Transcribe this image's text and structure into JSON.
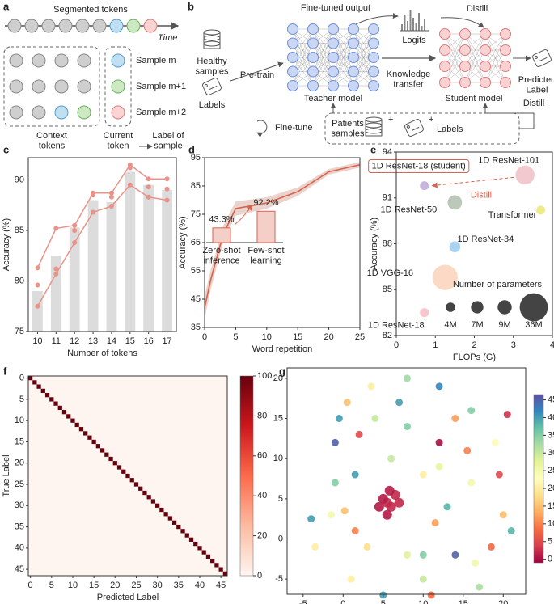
{
  "diagram_a": {
    "panel": "a",
    "title": "Segmented tokens",
    "time_label": "Time",
    "samples": [
      "Sample m",
      "Sample m+1",
      "Sample m+2"
    ],
    "context_label": "Context tokens",
    "current_label": "Current token",
    "result_label": "Label of sample"
  },
  "diagram_b": {
    "panel": "b",
    "healthy": "Healthy samples",
    "labels": "Labels",
    "pretrain": "Pre-train",
    "fine_tuned_output": "Fine-tuned output",
    "logits": "Logits",
    "distill_top": "Distill",
    "teacher": "Teacher model",
    "knowledge": "Knowledge transfer",
    "student": "Student model",
    "predicted": "Predicted Label",
    "finetune": "Fine-tune",
    "patients": "Patients samples",
    "patient_labels": "Labels",
    "distill_bottom": "Distill"
  },
  "chart_data": [
    {
      "panel": "c",
      "type": "bar",
      "categories": [
        "10",
        "11",
        "12",
        "13",
        "14",
        "15",
        "16",
        "17"
      ],
      "values": [
        79,
        82.5,
        85.3,
        88,
        87.8,
        90.8,
        89.5,
        89
      ],
      "color": "#dcdcdc",
      "series": [
        {
          "color": "#e8938a",
          "values": [
            81.3,
            85.2,
            85.5,
            88.7,
            88.7,
            91.5,
            90.1,
            90.1
          ],
          "line": true
        },
        {
          "color": "#e8938a",
          "values": [
            79.6,
            81.2,
            85.0,
            88.5,
            88.3,
            91.2,
            89.3,
            89.1
          ],
          "line": false
        },
        {
          "color": "#e8938a",
          "values": [
            77.5,
            80.7,
            83.8,
            86.8,
            87.4,
            89.5,
            88.3,
            88.0
          ],
          "line": true
        }
      ],
      "ylim": [
        75,
        92.2
      ],
      "yticks": [
        75,
        80,
        85,
        90
      ],
      "xlabel": "Number of tokens",
      "ylabel": "Accuracy (%)"
    },
    {
      "panel": "d",
      "type": "line",
      "x": [
        0,
        1,
        2,
        3,
        5,
        10,
        15,
        20,
        25
      ],
      "values": [
        42,
        52,
        60,
        68,
        77,
        79,
        83,
        90,
        92.5
      ],
      "error": [
        4,
        3.5,
        3,
        3,
        2.5,
        2,
        1.5,
        1,
        1
      ],
      "color": "#d9634d",
      "band_color": "#ead3cd",
      "xlim": [
        0,
        25
      ],
      "ylim": [
        35,
        95
      ],
      "xticks": [
        0,
        5,
        10,
        15,
        20,
        25
      ],
      "yticks": [
        35,
        45,
        55,
        65,
        75,
        85,
        95
      ],
      "xlabel": "Word repetition",
      "ylabel": "Accuracy (%)",
      "inset": {
        "categories": [
          "Zero-shot inference",
          "Few-shot learning"
        ],
        "values": [
          43.3,
          92.2
        ],
        "value_labels": [
          "43.3%",
          "92.2%"
        ],
        "color": "#f4cfc7"
      }
    },
    {
      "panel": "e",
      "type": "bubble",
      "points": [
        {
          "label": "1D ResNet-18 (student)",
          "x": 0.72,
          "y": 91.8,
          "size": 4,
          "color": "#c9b6dd"
        },
        {
          "label": "1D ResNet-101",
          "x": 3.3,
          "y": 92.5,
          "size": 17,
          "color": "#f2c9cf"
        },
        {
          "label": "1D ResNet-50",
          "x": 1.5,
          "y": 90.7,
          "size": 10,
          "color": "#bcc8b9"
        },
        {
          "label": "Transformer",
          "x": 3.7,
          "y": 90.2,
          "size": 4,
          "color": "#eeeb8a"
        },
        {
          "label": "1D ResNet-34",
          "x": 1.5,
          "y": 87.8,
          "size": 6,
          "color": "#a9d3f0"
        },
        {
          "label": "1D VGG-16",
          "x": 1.25,
          "y": 85.8,
          "size": 30,
          "color": "#fbd9c4"
        },
        {
          "label": "1D ResNet-18",
          "x": 0.72,
          "y": 83.5,
          "size": 4,
          "color": "#f6c6cc"
        }
      ],
      "xlim": [
        0,
        4
      ],
      "ylim": [
        82,
        94
      ],
      "xticks": [
        0,
        1,
        2,
        3,
        4
      ],
      "yticks": [
        82,
        85,
        88,
        91,
        94
      ],
      "xlabel": "FLOPs (G)",
      "ylabel": "Accuracy (%)",
      "annotation": "Distill",
      "annotation_color": "#d9634d",
      "legend_title": "Number of parameters",
      "legend_sizes": [
        {
          "value": 4,
          "label": "4M"
        },
        {
          "value": 7,
          "label": "7M"
        },
        {
          "value": 9,
          "label": "9M"
        },
        {
          "value": 36,
          "label": "36M"
        }
      ],
      "legend_color": "#444"
    },
    {
      "panel": "f",
      "type": "heatmap",
      "diagonal": [
        100,
        100,
        100,
        100,
        100,
        100,
        100,
        100,
        100,
        100,
        100,
        100,
        100,
        100,
        100,
        100,
        100,
        100,
        100,
        100,
        100,
        100,
        100,
        100,
        100,
        100,
        100,
        100,
        100,
        100,
        100,
        100,
        100,
        100,
        100,
        100,
        100,
        100,
        100,
        100,
        100,
        100,
        100,
        100,
        100,
        100,
        100
      ],
      "off_diagonal": 0,
      "xlim": [
        -0.5,
        46.5
      ],
      "ylim": [
        46.5,
        -0.5
      ],
      "xticks": [
        0,
        5,
        10,
        15,
        20,
        25,
        30,
        35,
        40,
        45
      ],
      "yticks": [
        0,
        5,
        10,
        15,
        20,
        25,
        30,
        35,
        40,
        45
      ],
      "clim": [
        0,
        100
      ],
      "cbarticks": [
        0,
        20,
        40,
        60,
        80,
        100
      ],
      "colors": [
        "#fff5f0",
        "#fcbba1",
        "#fb6a4a",
        "#cb181d",
        "#67000d"
      ],
      "xlabel": "Predicted Label",
      "ylabel": "True Label"
    },
    {
      "panel": "g",
      "type": "scatter",
      "x": [
        5.5,
        5,
        6,
        5.5,
        6.5,
        4.5,
        7,
        5.8,
        -4,
        -0.5,
        -1,
        0.5,
        3.5,
        7,
        12,
        16,
        20.5,
        19,
        15.5,
        12,
        8,
        4,
        2,
        -1,
        -1.5,
        1.5,
        3,
        8,
        10,
        11.5,
        13,
        16,
        19.5,
        20,
        16.5,
        18.5,
        21,
        14,
        10,
        5,
        1,
        -3.5,
        1.5,
        0.2,
        10,
        12,
        6,
        8,
        14,
        17,
        11
      ],
      "y": [
        4.5,
        5,
        4,
        3,
        5.5,
        4,
        4.5,
        6,
        2.5,
        15,
        12,
        17,
        19,
        17,
        19,
        16,
        15.5,
        12,
        11,
        12,
        14,
        15,
        13,
        7,
        3,
        8,
        -1,
        -2,
        -2,
        2,
        4,
        7,
        8,
        3,
        -3,
        -1,
        1,
        -2,
        -5,
        -7,
        -5,
        -1,
        1,
        3.5,
        8,
        9,
        10,
        20,
        15,
        -6,
        -7
      ],
      "labels": [
        2,
        1,
        2,
        1,
        2,
        1,
        2,
        1,
        40,
        40,
        45,
        15,
        20,
        40,
        42,
        35,
        3,
        22,
        10,
        0,
        35,
        30,
        5,
        35,
        25,
        40,
        18,
        28,
        35,
        12,
        38,
        25,
        5,
        15,
        25,
        8,
        38,
        45,
        30,
        40,
        20,
        20,
        10,
        15,
        20,
        27,
        30,
        33,
        12,
        32,
        8
      ],
      "xlim": [
        -7,
        22.8
      ],
      "ylim": [
        -6.9,
        21.3
      ],
      "xticks": [
        -5,
        0,
        5,
        10,
        15,
        20
      ],
      "yticks": [
        -5,
        0,
        5,
        10,
        15,
        20
      ],
      "clim": [
        -1,
        46.5
      ],
      "cbarticks": [
        0,
        5,
        10,
        15,
        20,
        25,
        30,
        35,
        40,
        45
      ],
      "colors": [
        "#9e0142",
        "#d53e4f",
        "#f46d43",
        "#fdae61",
        "#fee08b",
        "#ffffbf",
        "#e6f598",
        "#abdda4",
        "#66c2a5",
        "#3288bd",
        "#5e4fa2"
      ]
    }
  ]
}
